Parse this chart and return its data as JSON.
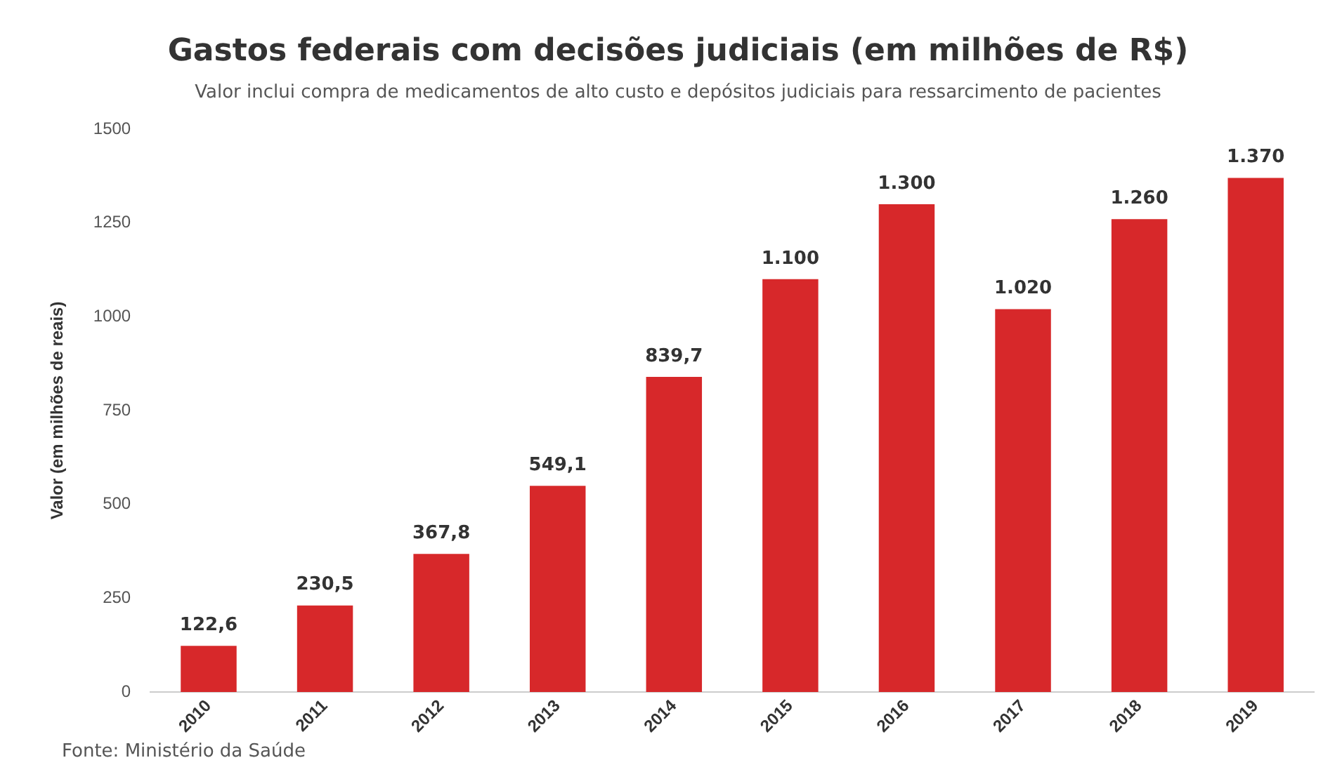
{
  "chart_data": {
    "type": "bar",
    "title": "Gastos federais com decisões judiciais (em milhões de R$)",
    "subtitle": "Valor inclui compra de medicamentos de alto custo e depósitos judiciais para ressarcimento de pacientes",
    "ylabel": "Valor (em milhões de reais)",
    "categories": [
      "2010",
      "2011",
      "2012",
      "2013",
      "2014",
      "2015",
      "2016",
      "2017",
      "2018",
      "2019"
    ],
    "values": [
      122.6,
      230.5,
      367.8,
      549.1,
      839.7,
      1100,
      1300,
      1020,
      1260,
      1370
    ],
    "value_labels": [
      "122,6",
      "230,5",
      "367,8",
      "549,1",
      "839,7",
      "1.100",
      "1.300",
      "1.020",
      "1.260",
      "1.370"
    ],
    "color": "#d7282a",
    "ylim": [
      0,
      1500
    ],
    "yticks": [
      0,
      250,
      500,
      750,
      1000,
      1250,
      1500
    ],
    "grid": false,
    "legend": false,
    "annotations": [
      "Fonte: Ministério da Saúde"
    ]
  }
}
